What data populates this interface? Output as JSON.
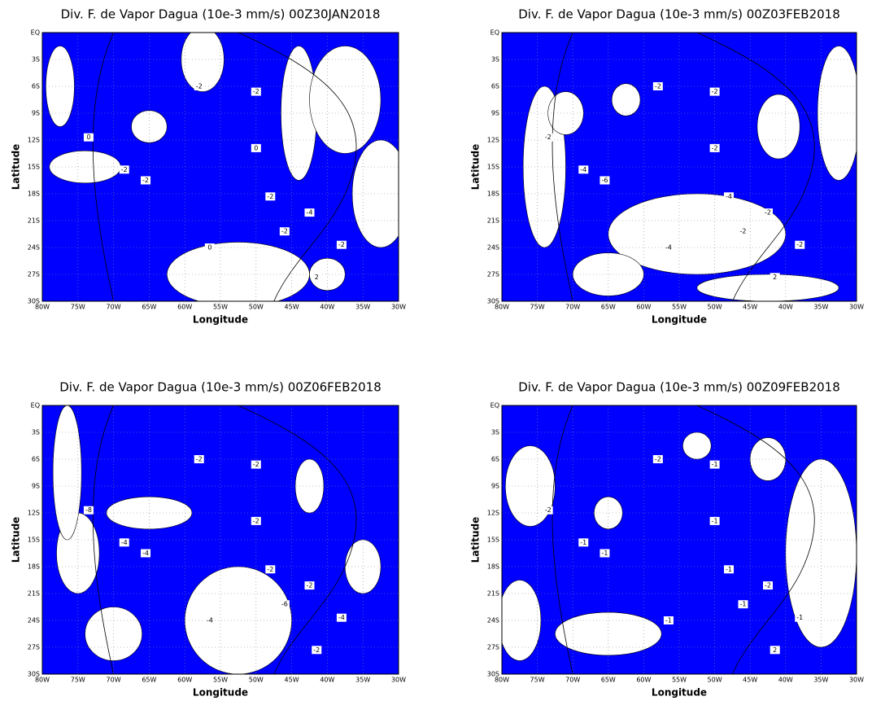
{
  "panels": [
    {
      "title": "Div. F. de Vapor Dagua (10e-3 mm/s) 00Z30JAN2018",
      "ylabel": "Latitude",
      "xlabel": "Longitude",
      "yticks": [
        "EQ",
        "3S",
        "6S",
        "9S",
        "12S",
        "15S",
        "18S",
        "21S",
        "24S",
        "27S",
        "30S"
      ],
      "xticks": [
        "80W",
        "75W",
        "70W",
        "65W",
        "60W",
        "55W",
        "50W",
        "45W",
        "40W",
        "35W",
        "30W"
      ],
      "contour_labels": [
        "-2",
        "-2",
        "0",
        "-2",
        "-2",
        "-2",
        "-4",
        "-2",
        "-2",
        "0",
        "0",
        "2"
      ]
    },
    {
      "title": "Div. F. de Vapor Dagua (10e-3 mm/s) 00Z03FEB2018",
      "ylabel": "Latitude",
      "xlabel": "Longitude",
      "yticks": [
        "EQ",
        "3S",
        "6S",
        "9S",
        "12S",
        "15S",
        "18S",
        "21S",
        "24S",
        "27S",
        "30S"
      ],
      "xticks": [
        "80W",
        "75W",
        "70W",
        "65W",
        "60W",
        "55W",
        "50W",
        "45W",
        "40W",
        "35W",
        "30W"
      ],
      "contour_labels": [
        "-2",
        "-2",
        "-2",
        "-4",
        "-6",
        "-4",
        "-2",
        "-2",
        "-2",
        "-2",
        "-4",
        "2"
      ]
    },
    {
      "title": "Div. F. de Vapor Dagua (10e-3 mm/s) 00Z06FEB2018",
      "ylabel": "Latitude",
      "xlabel": "Longitude",
      "yticks": [
        "EQ",
        "3S",
        "6S",
        "9S",
        "12S",
        "15S",
        "18S",
        "21S",
        "24S",
        "27S",
        "30S"
      ],
      "xticks": [
        "80W",
        "75W",
        "70W",
        "65W",
        "60W",
        "55W",
        "50W",
        "45W",
        "40W",
        "35W",
        "30W"
      ],
      "contour_labels": [
        "-2",
        "-2",
        "-2",
        "-4",
        "-4",
        "-2",
        "-2",
        "-6",
        "-4",
        "-8",
        "-4",
        "-2"
      ]
    },
    {
      "title": "Div. F. de Vapor Dagua (10e-3 mm/s) 00Z09FEB2018",
      "ylabel": "Latitude",
      "xlabel": "Longitude",
      "yticks": [
        "EQ",
        "3S",
        "6S",
        "9S",
        "12S",
        "15S",
        "18S",
        "21S",
        "24S",
        "27S",
        "30S"
      ],
      "xticks": [
        "80W",
        "75W",
        "70W",
        "65W",
        "60W",
        "55W",
        "50W",
        "45W",
        "40W",
        "35W",
        "30W"
      ],
      "contour_labels": [
        "-2",
        "-1",
        "-1",
        "-1",
        "-1",
        "-1",
        "-2",
        "-1",
        "-1",
        "-2",
        "-1",
        "2"
      ]
    }
  ]
}
